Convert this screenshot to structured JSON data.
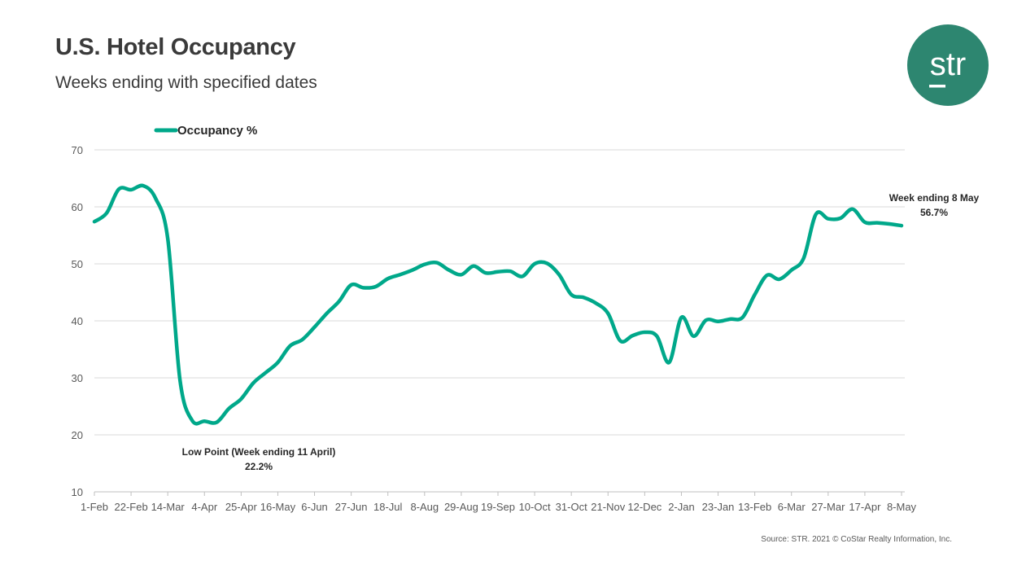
{
  "header": {
    "title": "U.S. Hotel Occupancy",
    "subtitle": "Weeks ending with specified dates"
  },
  "logo": {
    "text": "str",
    "color": "#2d8670"
  },
  "source": "Source: STR. 2021 © CoStar Realty Information, Inc.",
  "chart_data": {
    "type": "line",
    "title": "U.S. Hotel Occupancy",
    "subtitle": "Weeks ending with specified dates",
    "xlabel": "",
    "ylabel": "",
    "ylim": [
      10,
      70
    ],
    "yticks": [
      10,
      20,
      30,
      40,
      50,
      60,
      70
    ],
    "grid": true,
    "legend_position": "top-left",
    "xtick_labels": [
      "1-Feb",
      "22-Feb",
      "14-Mar",
      "4-Apr",
      "25-Apr",
      "16-May",
      "6-Jun",
      "27-Jun",
      "18-Jul",
      "8-Aug",
      "29-Aug",
      "19-Sep",
      "10-Oct",
      "31-Oct",
      "21-Nov",
      "12-Dec",
      "2-Jan",
      "23-Jan",
      "13-Feb",
      "6-Mar",
      "27-Mar",
      "17-Apr",
      "8-May"
    ],
    "xtick_every_weeks": 3,
    "series": [
      {
        "name": "Occupancy %",
        "color": "#00a88a",
        "values": [
          57.4,
          58.9,
          63.1,
          63.0,
          63.7,
          61.5,
          54.4,
          29.6,
          22.5,
          22.4,
          22.2,
          24.6,
          26.3,
          29.1,
          30.9,
          32.7,
          35.6,
          36.7,
          38.9,
          41.3,
          43.4,
          46.3,
          45.8,
          46.0,
          47.4,
          48.1,
          48.9,
          49.9,
          50.2,
          48.9,
          48.1,
          49.6,
          48.4,
          48.6,
          48.7,
          47.8,
          50.0,
          50.1,
          48.1,
          44.6,
          44.1,
          43.1,
          41.3,
          36.5,
          37.4,
          38.0,
          37.3,
          32.7,
          40.6,
          37.3,
          40.1,
          39.9,
          40.3,
          40.6,
          44.6,
          48.0,
          47.3,
          48.9,
          51.0,
          58.7,
          57.9,
          58.0,
          59.6,
          57.3,
          57.2,
          57.0,
          56.7
        ]
      }
    ],
    "annotations": [
      {
        "line1": "Low Point (Week ending 11 April)",
        "line2": "22.2%",
        "week_index": 10
      },
      {
        "line1": "Week ending 8 May",
        "line2": "56.7%",
        "week_index": 66
      }
    ]
  }
}
